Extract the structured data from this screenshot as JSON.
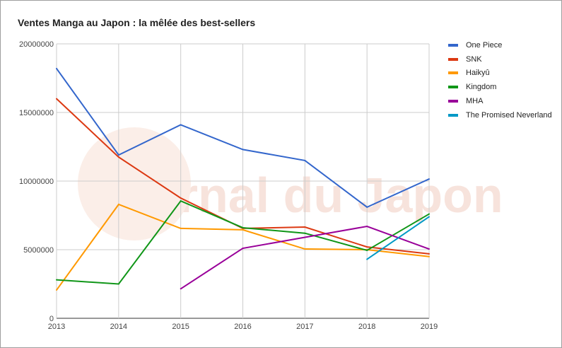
{
  "watermark": "Journal du Japon",
  "chart_data": {
    "type": "line",
    "title": "Ventes Manga au Japon : la mêlée des best-sellers",
    "xlabel": "",
    "ylabel": "",
    "x": [
      2013,
      2014,
      2015,
      2016,
      2017,
      2018,
      2019
    ],
    "x_tick_labels": [
      "2013",
      "2014",
      "2015",
      "2016",
      "2017",
      "2018",
      "2019"
    ],
    "ylim": [
      0,
      20000000
    ],
    "y_ticks": [
      0,
      5000000,
      10000000,
      15000000,
      20000000
    ],
    "y_tick_labels": [
      "0",
      "5000000",
      "10000000",
      "15000000",
      "20000000"
    ],
    "grid": true,
    "legend_position": "right",
    "series": [
      {
        "name": "One Piece",
        "color": "#3366cc",
        "values": [
          18200000,
          11900000,
          14100000,
          12300000,
          11500000,
          8100000,
          10150000
        ]
      },
      {
        "name": "SNK",
        "color": "#dc3912",
        "values": [
          16000000,
          11750000,
          8760000,
          6550000,
          6650000,
          5200000,
          4700000
        ]
      },
      {
        "name": "Haikyû",
        "color": "#ff9900",
        "values": [
          2060000,
          8300000,
          6550000,
          6450000,
          5050000,
          5000000,
          4500000
        ]
      },
      {
        "name": "Kingdom",
        "color": "#109618",
        "values": [
          2800000,
          2500000,
          8550000,
          6600000,
          6200000,
          4950000,
          7600000
        ]
      },
      {
        "name": "MHA",
        "color": "#990099",
        "values": [
          null,
          null,
          2150000,
          5100000,
          5900000,
          6700000,
          5050000
        ]
      },
      {
        "name": "The Promised Neverland",
        "color": "#0099c6",
        "values": [
          null,
          null,
          null,
          null,
          null,
          4300000,
          7400000
        ]
      }
    ]
  }
}
